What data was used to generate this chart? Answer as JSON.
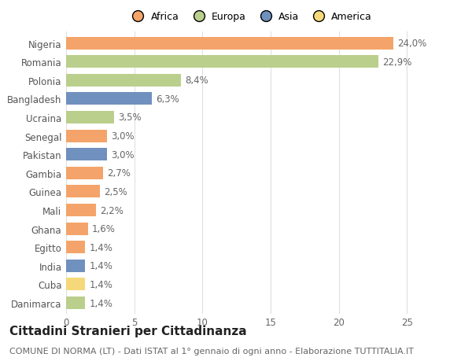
{
  "countries": [
    "Nigeria",
    "Romania",
    "Polonia",
    "Bangladesh",
    "Ucraina",
    "Senegal",
    "Pakistan",
    "Gambia",
    "Guinea",
    "Mali",
    "Ghana",
    "Egitto",
    "India",
    "Cuba",
    "Danimarca"
  ],
  "values": [
    24.0,
    22.9,
    8.4,
    6.3,
    3.5,
    3.0,
    3.0,
    2.7,
    2.5,
    2.2,
    1.6,
    1.4,
    1.4,
    1.4,
    1.4
  ],
  "labels": [
    "24,0%",
    "22,9%",
    "8,4%",
    "6,3%",
    "3,5%",
    "3,0%",
    "3,0%",
    "2,7%",
    "2,5%",
    "2,2%",
    "1,6%",
    "1,4%",
    "1,4%",
    "1,4%",
    "1,4%"
  ],
  "continents": [
    "Africa",
    "Europa",
    "Europa",
    "Asia",
    "Europa",
    "Africa",
    "Asia",
    "Africa",
    "Africa",
    "Africa",
    "Africa",
    "Africa",
    "Asia",
    "America",
    "Europa"
  ],
  "continent_colors": {
    "Africa": "#F4A46A",
    "Europa": "#BACF8C",
    "Asia": "#7090BE",
    "America": "#F5D87A"
  },
  "legend_order": [
    "Africa",
    "Europa",
    "Asia",
    "America"
  ],
  "legend_colors": [
    "#F4A46A",
    "#BACF8C",
    "#7090BE",
    "#F5D87A"
  ],
  "title": "Cittadini Stranieri per Cittadinanza",
  "subtitle": "COMUNE DI NORMA (LT) - Dati ISTAT al 1° gennaio di ogni anno - Elaborazione TUTTITALIA.IT",
  "xlim": [
    0,
    27
  ],
  "xticks": [
    0,
    5,
    10,
    15,
    20,
    25
  ],
  "background_color": "#ffffff",
  "grid_color": "#e0e0e0",
  "bar_height": 0.68,
  "label_fontsize": 8.5,
  "tick_fontsize": 8.5,
  "title_fontsize": 11,
  "subtitle_fontsize": 8
}
